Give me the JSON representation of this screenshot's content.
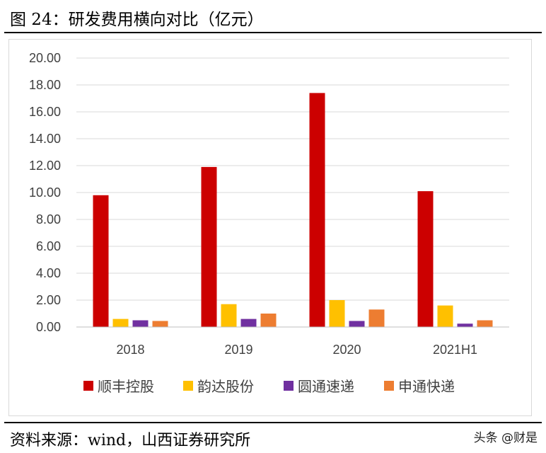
{
  "header": {
    "title": "图 24：研发费用横向对比（亿元）"
  },
  "footer": {
    "source": "资料来源：wind，山西证券研究所",
    "watermark": "头条 @财是"
  },
  "chart_data": {
    "type": "bar",
    "title": "",
    "xlabel": "",
    "ylabel": "",
    "ylim": [
      0,
      20
    ],
    "yticks": [
      "0.00",
      "2.00",
      "4.00",
      "6.00",
      "8.00",
      "10.00",
      "12.00",
      "14.00",
      "16.00",
      "18.00",
      "20.00"
    ],
    "grid": true,
    "legend_position": "bottom",
    "categories": [
      "2018",
      "2019",
      "2020",
      "2021H1"
    ],
    "series": [
      {
        "name": "顺丰控股",
        "color": "#cc0000",
        "values": [
          9.8,
          11.9,
          17.4,
          10.1
        ]
      },
      {
        "name": "韵达股份",
        "color": "#ffc000",
        "values": [
          0.6,
          1.7,
          2.0,
          1.6
        ]
      },
      {
        "name": "圆通速递",
        "color": "#7030a0",
        "values": [
          0.5,
          0.6,
          0.45,
          0.25
        ]
      },
      {
        "name": "申通快递",
        "color": "#ed7d31",
        "values": [
          0.45,
          1.0,
          1.3,
          0.5
        ]
      }
    ]
  }
}
